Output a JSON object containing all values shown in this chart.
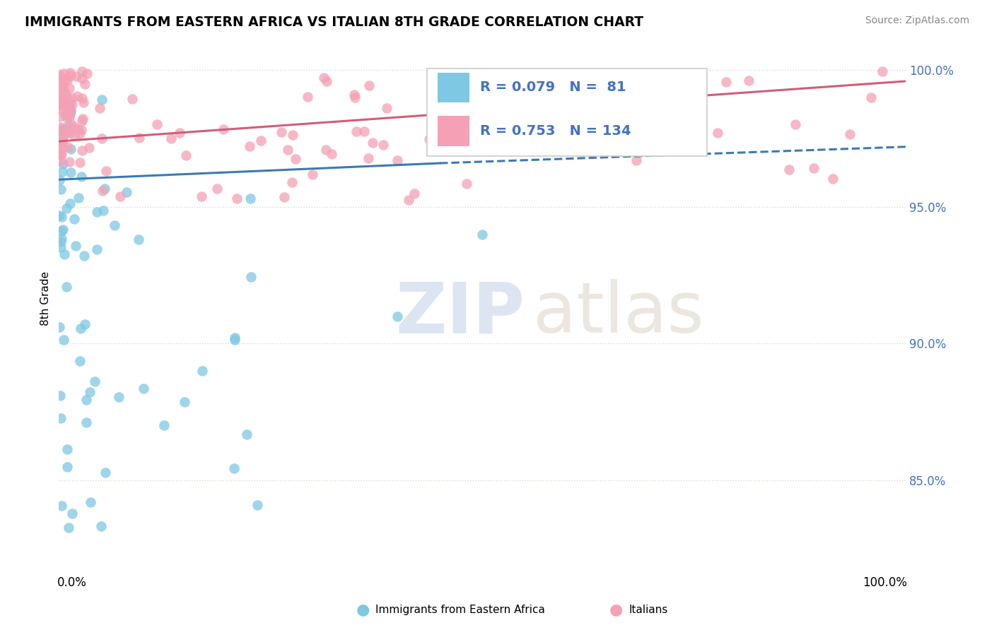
{
  "title": "IMMIGRANTS FROM EASTERN AFRICA VS ITALIAN 8TH GRADE CORRELATION CHART",
  "source": "Source: ZipAtlas.com",
  "ylabel": "8th Grade",
  "r_blue": 0.079,
  "n_blue": 81,
  "r_pink": 0.753,
  "n_pink": 134,
  "blue_color": "#7ec8e3",
  "blue_edge_color": "#5ba4c7",
  "pink_color": "#f4a0b5",
  "pink_edge_color": "#e06080",
  "blue_line_color": "#3d7ab5",
  "pink_line_color": "#d45c7a",
  "legend_label_blue": "Immigrants from Eastern Africa",
  "legend_label_pink": "Italians",
  "ytick_color": "#4472c4",
  "grid_color": "#d0d8e8"
}
